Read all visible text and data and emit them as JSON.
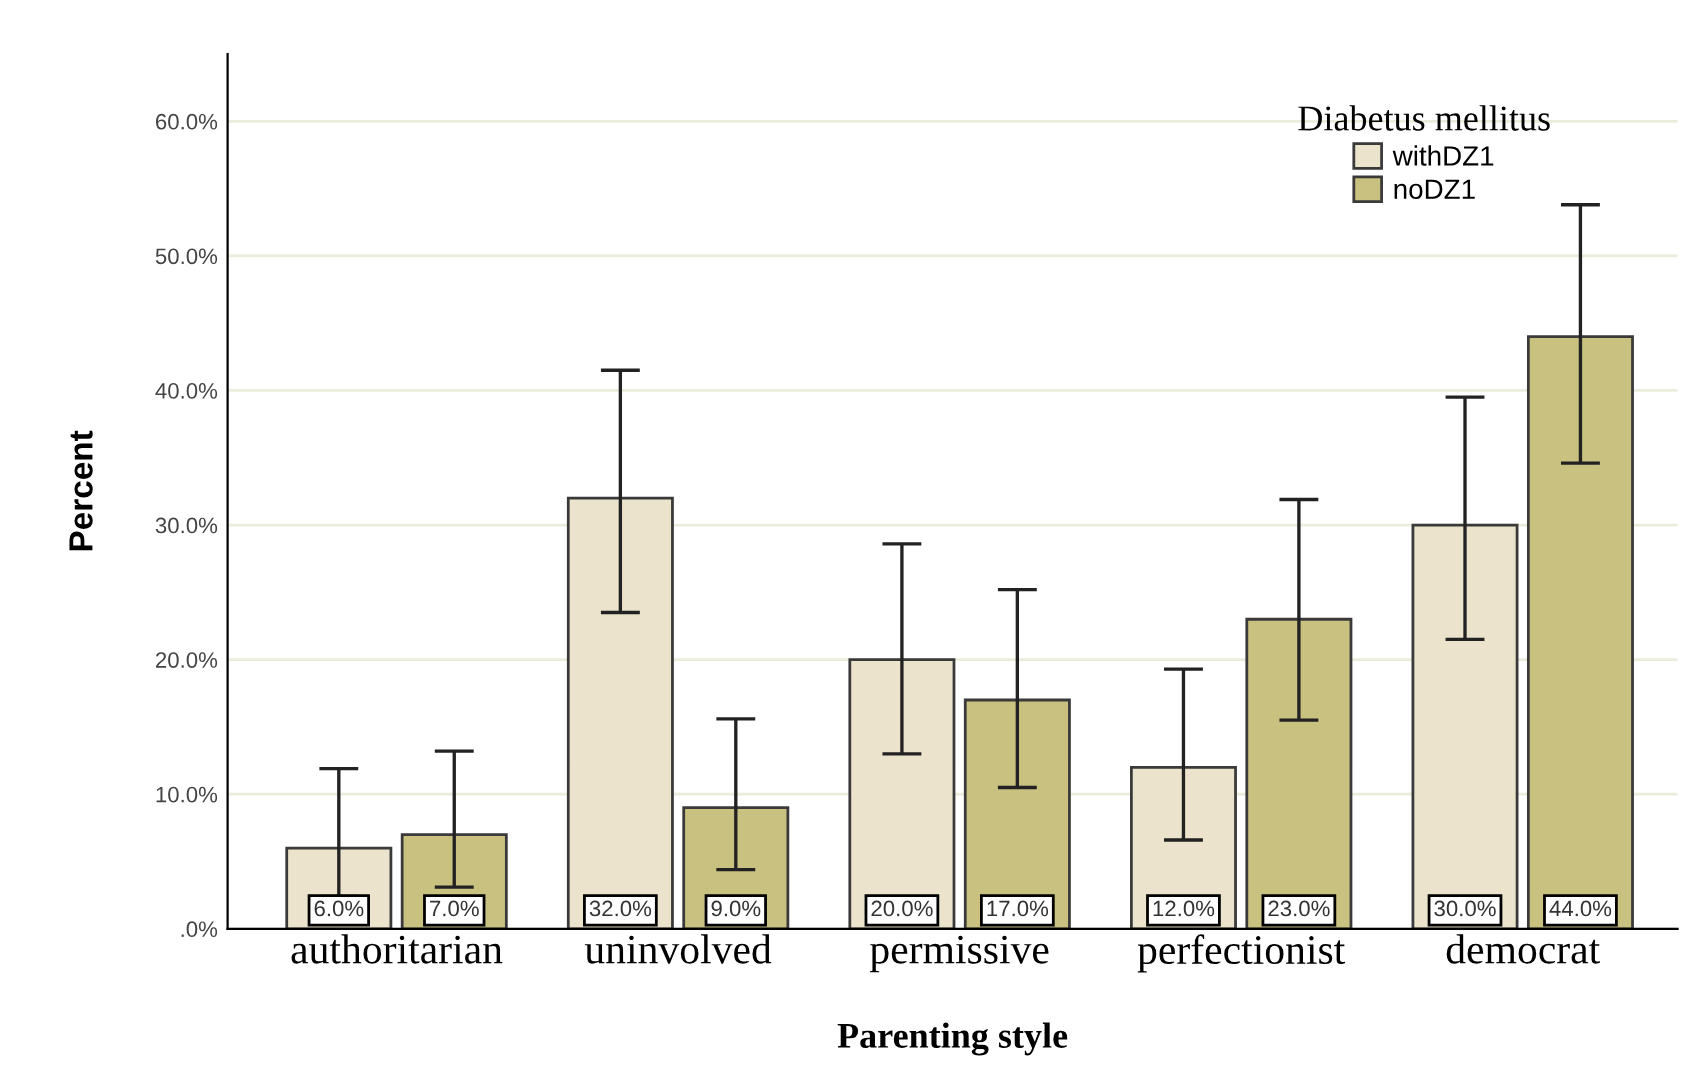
{
  "chart_data": {
    "type": "bar",
    "xlabel": "Parenting style",
    "ylabel": "Percent",
    "legend_title": "Diabetus mellitus",
    "categories": [
      "authoritarian",
      "uninvolved",
      "permissive",
      "perfectionist",
      "democrat"
    ],
    "series": [
      {
        "name": "withDZ1",
        "color": "#ebe3cb",
        "values": [
          6,
          32,
          20,
          12,
          30
        ],
        "errors": [
          [
            2.4,
            11.9
          ],
          [
            23.5,
            41.5
          ],
          [
            13.0,
            28.6
          ],
          [
            6.6,
            19.3
          ],
          [
            21.5,
            39.5
          ]
        ],
        "value_labels": [
          "6.0%",
          "32.0%",
          "20.0%",
          "12.0%",
          "30.0%"
        ]
      },
      {
        "name": "noDZ1",
        "color": "#c9c17f",
        "values": [
          7,
          9,
          17,
          23,
          44
        ],
        "errors": [
          [
            3.1,
            13.2
          ],
          [
            4.4,
            15.6
          ],
          [
            10.5,
            25.2
          ],
          [
            15.5,
            31.9
          ],
          [
            34.6,
            53.8
          ]
        ],
        "value_labels": [
          "7.0%",
          "9.0%",
          "17.0%",
          "23.0%",
          "44.0%"
        ]
      }
    ],
    "ylim": [
      0,
      65
    ],
    "yticks": [
      {
        "value": 0,
        "label": ".0%"
      },
      {
        "value": 10,
        "label": "10.0%"
      },
      {
        "value": 20,
        "label": "20.0%"
      },
      {
        "value": 30,
        "label": "30.0%"
      },
      {
        "value": 40,
        "label": "40.0%"
      },
      {
        "value": 50,
        "label": "50.0%"
      },
      {
        "value": 60,
        "label": "60.0%"
      }
    ],
    "grid": "y",
    "legend": "top right"
  }
}
